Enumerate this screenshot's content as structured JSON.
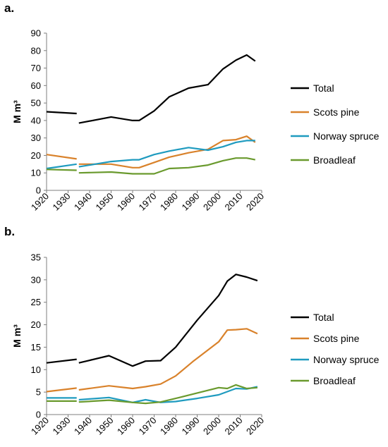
{
  "chart_data": [
    {
      "panel": "a.",
      "type": "line",
      "ylabel": "M m³",
      "xlim": [
        1920,
        2020
      ],
      "ylim": [
        0,
        90
      ],
      "x_ticks": [
        "1920",
        "1930",
        "1940",
        "1950",
        "1960",
        "1970",
        "1980",
        "1990",
        "2000",
        "2010",
        "2020"
      ],
      "y_ticks": [
        "0",
        "10",
        "20",
        "30",
        "40",
        "50",
        "60",
        "70",
        "80",
        "90"
      ],
      "grid": false,
      "legend_position": "right",
      "series": [
        {
          "name": "Total",
          "color": "#000000",
          "segments": [
            [
              [
                1920,
                45
              ],
              [
                1934,
                44
              ]
            ],
            [
              [
                1935,
                38.5
              ],
              [
                1950,
                42
              ],
              [
                1960,
                40
              ],
              [
                1963,
                40
              ],
              [
                1970,
                45.5
              ],
              [
                1977,
                53.5
              ],
              [
                1986,
                58.5
              ],
              [
                1995,
                60.5
              ],
              [
                2002,
                69.5
              ],
              [
                2008,
                74.5
              ],
              [
                2013,
                77.5
              ],
              [
                2017,
                74
              ]
            ]
          ]
        },
        {
          "name": "Scots pine",
          "color": "#d9822b",
          "segments": [
            [
              [
                1920,
                20.5
              ],
              [
                1934,
                18
              ]
            ],
            [
              [
                1935,
                15
              ],
              [
                1950,
                15
              ],
              [
                1960,
                13
              ],
              [
                1963,
                13
              ],
              [
                1970,
                16
              ],
              [
                1977,
                19
              ],
              [
                1986,
                21.5
              ],
              [
                1995,
                23.5
              ],
              [
                2002,
                28.5
              ],
              [
                2008,
                29
              ],
              [
                2013,
                31
              ],
              [
                2017,
                27.5
              ]
            ]
          ]
        },
        {
          "name": "Norway spruce",
          "color": "#1f9bbf",
          "segments": [
            [
              [
                1920,
                12.5
              ],
              [
                1934,
                15
              ]
            ],
            [
              [
                1935,
                13.5
              ],
              [
                1950,
                16.5
              ],
              [
                1960,
                17.5
              ],
              [
                1963,
                17.5
              ],
              [
                1970,
                20.5
              ],
              [
                1977,
                22.5
              ],
              [
                1986,
                24.5
              ],
              [
                1995,
                23
              ],
              [
                2002,
                25
              ],
              [
                2008,
                27.5
              ],
              [
                2013,
                28.5
              ],
              [
                2017,
                28.5
              ]
            ]
          ]
        },
        {
          "name": "Broadleaf",
          "color": "#6a9a2e",
          "segments": [
            [
              [
                1920,
                12
              ],
              [
                1934,
                11.5
              ]
            ],
            [
              [
                1935,
                10
              ],
              [
                1950,
                10.5
              ],
              [
                1960,
                9.5
              ],
              [
                1963,
                9.5
              ],
              [
                1970,
                9.5
              ],
              [
                1977,
                12.5
              ],
              [
                1986,
                13
              ],
              [
                1995,
                14.5
              ],
              [
                2002,
                17
              ],
              [
                2008,
                18.5
              ],
              [
                2013,
                18.5
              ],
              [
                2017,
                17.5
              ]
            ]
          ]
        }
      ]
    },
    {
      "panel": "b.",
      "type": "line",
      "ylabel": "M m³",
      "xlim": [
        1920,
        2020
      ],
      "ylim": [
        0,
        35
      ],
      "x_ticks": [
        "1920",
        "1930",
        "1940",
        "1950",
        "1960",
        "1970",
        "1980",
        "1990",
        "2000",
        "2010",
        "2020"
      ],
      "y_ticks": [
        "0",
        "5",
        "10",
        "15",
        "20",
        "25",
        "30",
        "35"
      ],
      "grid": false,
      "legend_position": "right",
      "series": [
        {
          "name": "Total",
          "color": "#000000",
          "segments": [
            [
              [
                1920,
                11.5
              ],
              [
                1934,
                12.3
              ]
            ],
            [
              [
                1935,
                11.5
              ],
              [
                1949,
                13.1
              ],
              [
                1960,
                10.8
              ],
              [
                1966,
                11.9
              ],
              [
                1973,
                12
              ],
              [
                1980,
                15
              ],
              [
                1990,
                21
              ],
              [
                2000,
                26.5
              ],
              [
                2004,
                29.7
              ],
              [
                2008,
                31.2
              ],
              [
                2013,
                30.6
              ],
              [
                2018,
                29.8
              ]
            ]
          ]
        },
        {
          "name": "Scots pine",
          "color": "#d9822b",
          "segments": [
            [
              [
                1920,
                5.1
              ],
              [
                1934,
                5.9
              ]
            ],
            [
              [
                1935,
                5.5
              ],
              [
                1949,
                6.4
              ],
              [
                1960,
                5.8
              ],
              [
                1966,
                6.2
              ],
              [
                1973,
                6.8
              ],
              [
                1980,
                8.6
              ],
              [
                1988,
                11.8
              ],
              [
                2000,
                16.2
              ],
              [
                2004,
                18.8
              ],
              [
                2008,
                18.9
              ],
              [
                2013,
                19.1
              ],
              [
                2018,
                18
              ]
            ]
          ]
        },
        {
          "name": "Norway spruce",
          "color": "#1f9bbf",
          "segments": [
            [
              [
                1920,
                3.7
              ],
              [
                1934,
                3.7
              ]
            ],
            [
              [
                1935,
                3.3
              ],
              [
                1949,
                3.8
              ],
              [
                1960,
                2.7
              ],
              [
                1966,
                3.3
              ],
              [
                1973,
                2.7
              ],
              [
                1980,
                2.9
              ],
              [
                1990,
                3.6
              ],
              [
                2000,
                4.4
              ],
              [
                2008,
                5.8
              ],
              [
                2013,
                5.7
              ],
              [
                2018,
                6.2
              ]
            ]
          ]
        },
        {
          "name": "Broadleaf",
          "color": "#6a9a2e",
          "segments": [
            [
              [
                1920,
                3.0
              ],
              [
                1934,
                3.0
              ]
            ],
            [
              [
                1935,
                2.8
              ],
              [
                1949,
                3.2
              ],
              [
                1960,
                2.7
              ],
              [
                1966,
                2.5
              ],
              [
                1973,
                2.8
              ],
              [
                1980,
                3.6
              ],
              [
                1990,
                4.8
              ],
              [
                2000,
                6.0
              ],
              [
                2004,
                5.8
              ],
              [
                2008,
                6.6
              ],
              [
                2013,
                5.8
              ],
              [
                2018,
                6.0
              ]
            ]
          ]
        }
      ]
    }
  ]
}
